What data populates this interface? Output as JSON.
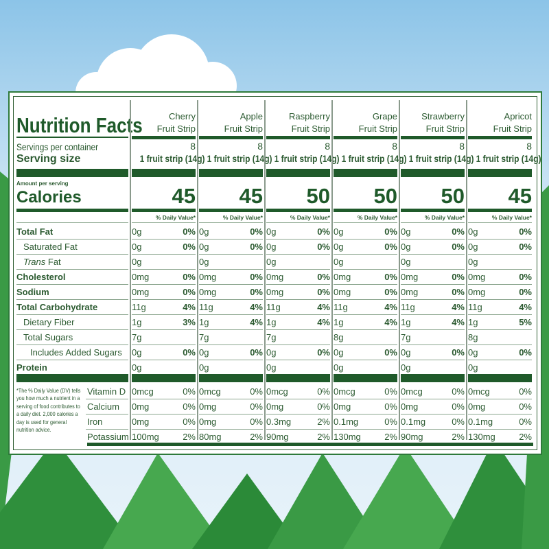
{
  "title": "Nutrition Facts",
  "labels": {
    "servings_per_container": "Servings per container",
    "serving_size": "Serving size",
    "amount_per_serving": "Amount per serving",
    "calories": "Calories",
    "daily_value": "% Daily Value*",
    "nutrients": [
      {
        "name": "Total Fat",
        "bold": true,
        "indent": 0
      },
      {
        "name": "Saturated Fat",
        "bold": false,
        "indent": 1
      },
      {
        "name": "Trans Fat",
        "bold": false,
        "indent": 1,
        "italic_prefix": "Trans"
      },
      {
        "name": "Cholesterol",
        "bold": true,
        "indent": 0
      },
      {
        "name": "Sodium",
        "bold": true,
        "indent": 0
      },
      {
        "name": "Total Carbohydrate",
        "bold": true,
        "indent": 0
      },
      {
        "name": "Dietary Fiber",
        "bold": false,
        "indent": 1
      },
      {
        "name": "Total Sugars",
        "bold": false,
        "indent": 1
      },
      {
        "name": "Includes Added Sugars",
        "bold": false,
        "indent": 2
      },
      {
        "name": "Protein",
        "bold": true,
        "indent": 0
      }
    ],
    "vitamins": [
      "Vitamin D",
      "Calcium",
      "Iron",
      "Potassium"
    ],
    "footnote": "*The % Daily Value (DV) tells you how much a nutrient in a serving of food contributes to a daily diet. 2,000 calories a day is used for general nutrition advice."
  },
  "products": [
    {
      "name1": "Cherry",
      "name2": "Fruit Strip",
      "servings": "8",
      "serving_size": "1 fruit strip (14g)",
      "calories": "45",
      "nutrients": [
        [
          "0g",
          "0%"
        ],
        [
          "0g",
          "0%"
        ],
        [
          "0g",
          ""
        ],
        [
          "0mg",
          "0%"
        ],
        [
          "0mg",
          "0%"
        ],
        [
          "11g",
          "4%"
        ],
        [
          "1g",
          "3%"
        ],
        [
          "7g",
          ""
        ],
        [
          "0g",
          "0%"
        ],
        [
          "0g",
          ""
        ]
      ],
      "vitamins": [
        [
          "0mcg",
          "0%"
        ],
        [
          "0mg",
          "0%"
        ],
        [
          "0mg",
          "0%"
        ],
        [
          "100mg",
          "2%"
        ]
      ]
    },
    {
      "name1": "Apple",
      "name2": "Fruit Strip",
      "servings": "8",
      "serving_size": "1 fruit strip (14g)",
      "calories": "45",
      "nutrients": [
        [
          "0g",
          "0%"
        ],
        [
          "0g",
          "0%"
        ],
        [
          "0g",
          ""
        ],
        [
          "0mg",
          "0%"
        ],
        [
          "0mg",
          "0%"
        ],
        [
          "11g",
          "4%"
        ],
        [
          "1g",
          "4%"
        ],
        [
          "7g",
          ""
        ],
        [
          "0g",
          "0%"
        ],
        [
          "0g",
          ""
        ]
      ],
      "vitamins": [
        [
          "0mcg",
          "0%"
        ],
        [
          "0mg",
          "0%"
        ],
        [
          "0mg",
          "0%"
        ],
        [
          "80mg",
          "2%"
        ]
      ]
    },
    {
      "name1": "Raspberry",
      "name2": "Fruit Strip",
      "servings": "8",
      "serving_size": "1 fruit strip (14g)",
      "calories": "50",
      "nutrients": [
        [
          "0g",
          "0%"
        ],
        [
          "0g",
          "0%"
        ],
        [
          "0g",
          ""
        ],
        [
          "0mg",
          "0%"
        ],
        [
          "0mg",
          "0%"
        ],
        [
          "11g",
          "4%"
        ],
        [
          "1g",
          "4%"
        ],
        [
          "7g",
          ""
        ],
        [
          "0g",
          "0%"
        ],
        [
          "0g",
          ""
        ]
      ],
      "vitamins": [
        [
          "0mcg",
          "0%"
        ],
        [
          "0mg",
          "0%"
        ],
        [
          "0.3mg",
          "2%"
        ],
        [
          "90mg",
          "2%"
        ]
      ]
    },
    {
      "name1": "Grape",
      "name2": "Fruit Strip",
      "servings": "8",
      "serving_size": "1 fruit strip (14g)",
      "calories": "50",
      "nutrients": [
        [
          "0g",
          "0%"
        ],
        [
          "0g",
          "0%"
        ],
        [
          "0g",
          ""
        ],
        [
          "0mg",
          "0%"
        ],
        [
          "0mg",
          "0%"
        ],
        [
          "11g",
          "4%"
        ],
        [
          "1g",
          "4%"
        ],
        [
          "8g",
          ""
        ],
        [
          "0g",
          "0%"
        ],
        [
          "0g",
          ""
        ]
      ],
      "vitamins": [
        [
          "0mcg",
          "0%"
        ],
        [
          "0mg",
          "0%"
        ],
        [
          "0.1mg",
          "0%"
        ],
        [
          "130mg",
          "2%"
        ]
      ]
    },
    {
      "name1": "Strawberry",
      "name2": "Fruit Strip",
      "servings": "8",
      "serving_size": "1 fruit strip (14g)",
      "calories": "50",
      "nutrients": [
        [
          "0g",
          "0%"
        ],
        [
          "0g",
          "0%"
        ],
        [
          "0g",
          ""
        ],
        [
          "0mg",
          "0%"
        ],
        [
          "0mg",
          "0%"
        ],
        [
          "11g",
          "4%"
        ],
        [
          "1g",
          "4%"
        ],
        [
          "7g",
          ""
        ],
        [
          "0g",
          "0%"
        ],
        [
          "0g",
          ""
        ]
      ],
      "vitamins": [
        [
          "0mcg",
          "0%"
        ],
        [
          "0mg",
          "0%"
        ],
        [
          "0.1mg",
          "0%"
        ],
        [
          "90mg",
          "2%"
        ]
      ]
    },
    {
      "name1": "Apricot",
      "name2": "Fruit Strip",
      "servings": "8",
      "serving_size": "1 fruit strip (14g)",
      "calories": "45",
      "nutrients": [
        [
          "0g",
          "0%"
        ],
        [
          "0g",
          "0%"
        ],
        [
          "0g",
          ""
        ],
        [
          "0mg",
          "0%"
        ],
        [
          "0mg",
          "0%"
        ],
        [
          "11g",
          "4%"
        ],
        [
          "1g",
          "5%"
        ],
        [
          "8g",
          ""
        ],
        [
          "0g",
          "0%"
        ],
        [
          "0g",
          ""
        ]
      ],
      "vitamins": [
        [
          "0mcg",
          "0%"
        ],
        [
          "0mg",
          "0%"
        ],
        [
          "0.1mg",
          "0%"
        ],
        [
          "130mg",
          "2%"
        ]
      ]
    }
  ],
  "colors": {
    "label_green": "#1f5a2a",
    "text_green": "#2b5a30",
    "border_green": "#2e7a3a"
  }
}
